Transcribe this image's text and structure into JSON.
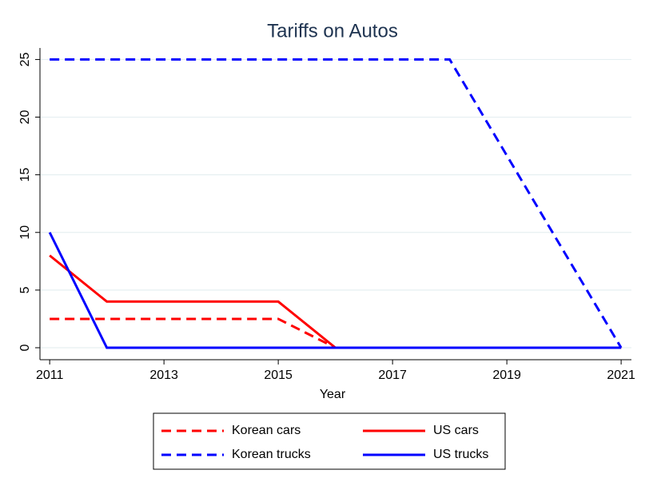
{
  "chart_data": {
    "type": "line",
    "title": "Tariffs on Autos",
    "xlabel": "Year",
    "x": [
      2011,
      2012,
      2013,
      2014,
      2015,
      2016,
      2017,
      2018,
      2019,
      2020,
      2021
    ],
    "series": [
      {
        "name": "Korean cars",
        "color": "#ff0000",
        "style": "dashed",
        "values": [
          2.5,
          2.5,
          2.5,
          2.5,
          2.5,
          0,
          0,
          0,
          0,
          0,
          0
        ]
      },
      {
        "name": "US cars",
        "color": "#ff0000",
        "style": "solid",
        "values": [
          8,
          4,
          4,
          4,
          4,
          0,
          0,
          0,
          0,
          0,
          0
        ]
      },
      {
        "name": "Korean trucks",
        "color": "#0000ff",
        "style": "dashed",
        "values": [
          25,
          25,
          25,
          25,
          25,
          25,
          25,
          25,
          16.67,
          8.33,
          0
        ]
      },
      {
        "name": "US trucks",
        "color": "#0000ff",
        "style": "solid",
        "values": [
          10,
          0,
          0,
          0,
          0,
          0,
          0,
          0,
          0,
          0,
          0
        ]
      }
    ],
    "xlim": [
      2010.83,
      2021.18
    ],
    "ylim": [
      -1.04,
      26
    ],
    "xticks": [
      2011,
      2013,
      2015,
      2017,
      2019,
      2021
    ],
    "yticks": [
      0,
      5,
      10,
      15,
      20,
      25
    ],
    "grid": true
  }
}
